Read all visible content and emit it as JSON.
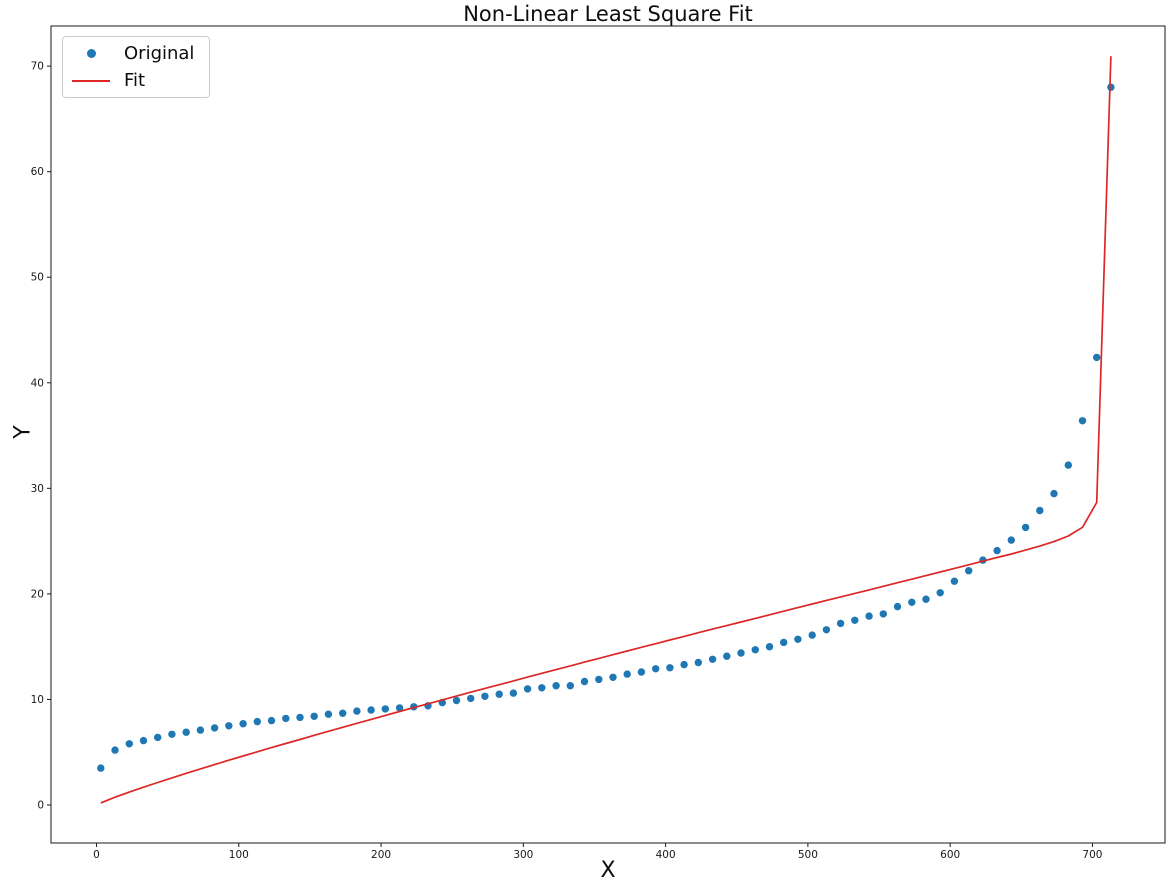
{
  "figure": {
    "title": "Non-Linear Least Square Fit",
    "xlabel": "X",
    "ylabel": "Y"
  },
  "legend": {
    "position": "upper left",
    "items": [
      {
        "label": "Original",
        "marker": "dot",
        "color": "#1f77b4"
      },
      {
        "label": "Fit",
        "marker": "line",
        "color": "#dd2727"
      }
    ]
  },
  "chart_data": {
    "type": "scatter",
    "title": "Non-Linear Least Square Fit",
    "xlabel": "X",
    "ylabel": "Y",
    "xlim": [
      -32,
      751
    ],
    "ylim": [
      -3.6,
      73.8
    ],
    "x_ticks": [
      0,
      100,
      200,
      300,
      400,
      500,
      600,
      700
    ],
    "y_ticks": [
      0,
      10,
      20,
      30,
      40,
      50,
      60,
      70
    ],
    "grid": false,
    "legend_position": "upper left",
    "series": [
      {
        "name": "Original",
        "type": "scatter",
        "color": "#1f77b4",
        "marker_size": 3.7,
        "x": [
          3,
          13,
          23,
          33,
          43,
          53,
          63,
          73,
          83,
          93,
          103,
          113,
          123,
          133,
          143,
          153,
          163,
          173,
          183,
          193,
          203,
          213,
          223,
          233,
          243,
          253,
          263,
          273,
          283,
          293,
          303,
          313,
          323,
          333,
          343,
          353,
          363,
          373,
          383,
          393,
          403,
          413,
          423,
          433,
          443,
          453,
          463,
          473,
          483,
          493,
          503,
          513,
          523,
          533,
          543,
          553,
          563,
          573,
          583,
          593,
          603,
          613,
          623,
          633,
          643,
          653,
          663,
          673,
          683,
          693,
          703,
          713
        ],
        "y": [
          3.5,
          5.2,
          5.8,
          6.1,
          6.4,
          6.7,
          6.9,
          7.1,
          7.3,
          7.5,
          7.7,
          7.9,
          8.0,
          8.2,
          8.3,
          8.4,
          8.6,
          8.7,
          8.9,
          9.0,
          9.1,
          9.2,
          9.3,
          9.4,
          9.7,
          9.9,
          10.1,
          10.3,
          10.5,
          10.6,
          11.0,
          11.1,
          11.3,
          11.3,
          11.7,
          11.9,
          12.1,
          12.4,
          12.6,
          12.9,
          13.0,
          13.3,
          13.5,
          13.8,
          14.1,
          14.4,
          14.7,
          15.0,
          15.4,
          15.7,
          16.1,
          16.6,
          17.2,
          17.5,
          17.9,
          18.1,
          18.8,
          19.2,
          19.5,
          20.1,
          21.2,
          22.2,
          23.2,
          24.1,
          25.1,
          26.3,
          27.9,
          29.5,
          32.2,
          36.4,
          42.4,
          68.0
        ]
      },
      {
        "name": "Fit",
        "type": "line",
        "color": "#dd2727",
        "line_width": 1.7,
        "x": [
          3,
          13,
          23,
          33,
          43,
          53,
          63,
          73,
          83,
          93,
          103,
          113,
          123,
          133,
          143,
          153,
          163,
          173,
          183,
          193,
          203,
          213,
          223,
          233,
          243,
          253,
          263,
          273,
          283,
          293,
          303,
          313,
          323,
          333,
          343,
          353,
          363,
          373,
          383,
          393,
          403,
          413,
          423,
          433,
          443,
          453,
          463,
          473,
          483,
          493,
          503,
          513,
          523,
          533,
          543,
          553,
          563,
          573,
          583,
          593,
          603,
          613,
          623,
          633,
          643,
          653,
          663,
          673,
          683,
          693,
          703,
          713
        ],
        "y": [
          0.2,
          0.74,
          1.22,
          1.69,
          2.13,
          2.57,
          3.0,
          3.42,
          3.83,
          4.24,
          4.64,
          5.04,
          5.44,
          5.83,
          6.21,
          6.6,
          6.98,
          7.36,
          7.74,
          8.11,
          8.49,
          8.86,
          9.23,
          9.59,
          9.96,
          10.32,
          10.69,
          11.05,
          11.4,
          11.76,
          12.12,
          12.48,
          12.83,
          13.18,
          13.54,
          13.89,
          14.24,
          14.59,
          14.94,
          15.28,
          15.63,
          15.97,
          16.32,
          16.66,
          17.0,
          17.34,
          17.68,
          18.02,
          18.36,
          18.7,
          19.04,
          19.38,
          19.71,
          20.05,
          20.38,
          20.72,
          21.06,
          21.39,
          21.73,
          22.07,
          22.41,
          22.76,
          23.11,
          23.45,
          23.78,
          24.15,
          24.53,
          24.95,
          25.48,
          26.31,
          28.66,
          70.94
        ]
      }
    ]
  }
}
